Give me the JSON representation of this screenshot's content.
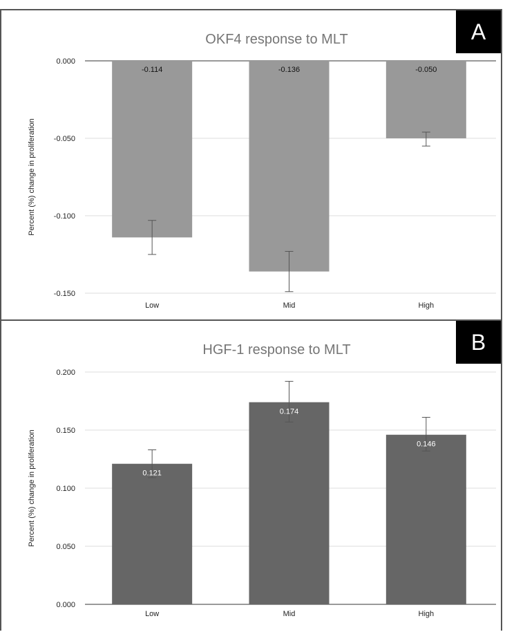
{
  "panels": [
    {
      "badge": "A",
      "chart_data": {
        "type": "bar",
        "title": "OKF4 response to MLT",
        "ylabel": "Percent (%) change in proliferation",
        "xlabel": "",
        "categories": [
          "Low",
          "Mid",
          "High"
        ],
        "values": [
          -0.114,
          -0.136,
          -0.05
        ],
        "value_labels": [
          "-0.114",
          "-0.136",
          "-0.050"
        ],
        "error_low": [
          -0.125,
          -0.149,
          -0.055
        ],
        "error_high": [
          -0.103,
          -0.123,
          -0.046
        ],
        "ylim": [
          -0.15,
          0.0
        ],
        "yticks": [
          0.0,
          -0.05,
          -0.1,
          -0.15
        ],
        "ytick_labels": [
          "0.000",
          "-0.050",
          "-0.100",
          "-0.150"
        ],
        "grid": true,
        "bar_color": "#999999",
        "label_color": "#111111"
      }
    },
    {
      "badge": "B",
      "chart_data": {
        "type": "bar",
        "title": "HGF-1 response to MLT",
        "ylabel": "Percent (%) change in proliferation",
        "xlabel": "",
        "categories": [
          "Low",
          "Mid",
          "High"
        ],
        "values": [
          0.121,
          0.174,
          0.146
        ],
        "value_labels": [
          "0.121",
          "0.174",
          "0.146"
        ],
        "error_low": [
          0.109,
          0.157,
          0.132
        ],
        "error_high": [
          0.133,
          0.192,
          0.161
        ],
        "ylim": [
          0.0,
          0.2
        ],
        "yticks": [
          0.2,
          0.15,
          0.1,
          0.05,
          0.0
        ],
        "ytick_labels": [
          "0.200",
          "0.150",
          "0.100",
          "0.050",
          "0.000"
        ],
        "grid": true,
        "bar_color": "#666666",
        "label_color": "#ffffff"
      }
    }
  ]
}
